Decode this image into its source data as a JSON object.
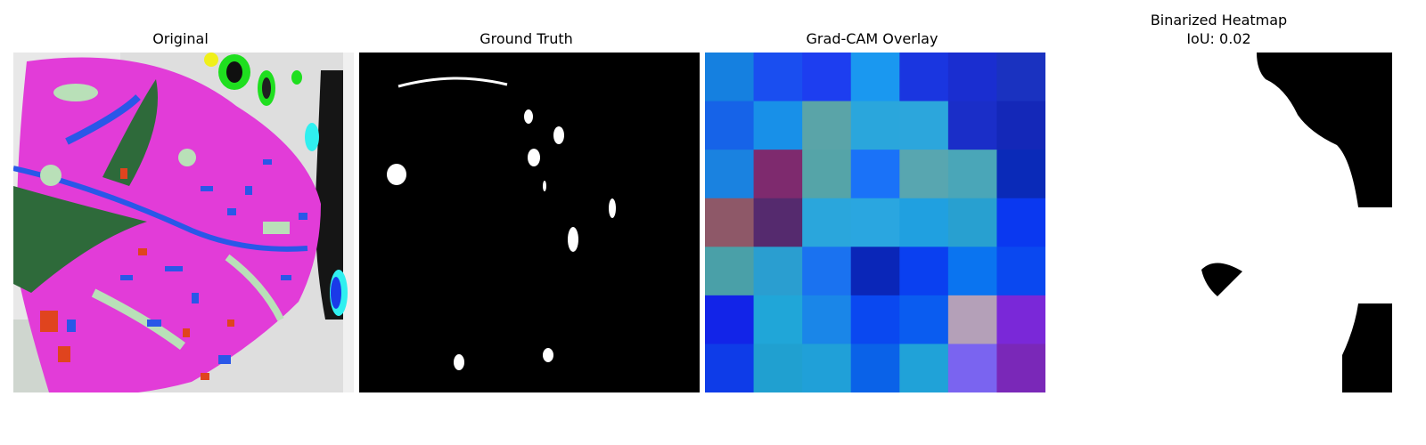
{
  "panels": [
    {
      "title": "Original"
    },
    {
      "title": "Ground Truth"
    },
    {
      "title": "Grad-CAM Overlay"
    },
    {
      "title": "Binarized Heatmap",
      "subtitle": "IoU: 0.02"
    }
  ],
  "colors": {
    "leaf_magenta": "#e23cd8",
    "vein_green": "#2e6a3a",
    "spot_blue": "#2a57e8",
    "spot_red": "#e0441e",
    "mask_black": "#000000",
    "mask_white": "#ffffff"
  },
  "gradcam_grid": [
    [
      "#1580e0",
      "#1a4ef0",
      "#1d3ef0",
      "#1a98f0",
      "#1a36e0",
      "#1a2ed0",
      "#1a32c0"
    ],
    [
      "#1663e8",
      "#1890e8",
      "#5aa4a8",
      "#2aa6dc",
      "#2ca6dc",
      "#1a2ec8",
      "#1428b8"
    ],
    [
      "#1a82e0",
      "#7e2a6e",
      "#55a4a8",
      "#1a72f8",
      "#58a6b0",
      "#4aa6b8",
      "#0a2ab8"
    ],
    [
      "#8e5868",
      "#552a6e",
      "#2aa6dc",
      "#2aa6e0",
      "#20a0e0",
      "#28a0d0",
      "#0a38f0"
    ],
    [
      "#4aa0a8",
      "#2a9ed0",
      "#1a72f0",
      "#0a26b8",
      "#0a40f0",
      "#0a74f0",
      "#0a48f0"
    ],
    [
      "#1224e8",
      "#20a6d8",
      "#1a86e8",
      "#0a48f0",
      "#0a5cf0",
      "#b4a0b8",
      "#7a28d8"
    ],
    [
      "#0e3ce8",
      "#20a0d0",
      "#20a0d8",
      "#0a62e8",
      "#20a2d8",
      "#7a64f0",
      "#7a28b8"
    ]
  ]
}
